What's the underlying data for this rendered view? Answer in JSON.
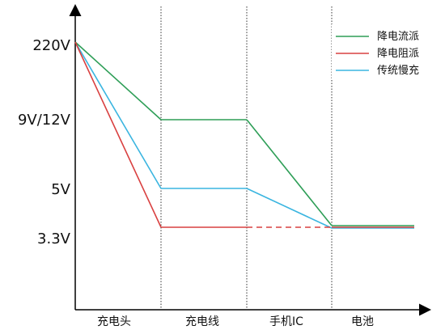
{
  "chart_data": {
    "type": "line",
    "categories_boundaries": [
      0,
      1,
      2,
      3,
      4
    ],
    "x_category_labels": [
      "充电头",
      "充电线",
      "手机IC",
      "电池"
    ],
    "y_tick_labels": [
      "220V",
      "9V/12V",
      "5V",
      "3.3V"
    ],
    "y_tick_values": [
      220,
      9,
      5,
      3.3
    ],
    "series": [
      {
        "name": "降电流派",
        "color": "#2e9e57",
        "dashed_after_x": null,
        "points": [
          [
            0,
            220
          ],
          [
            1,
            9
          ],
          [
            2,
            9
          ],
          [
            3,
            3.3
          ],
          [
            4,
            3.3
          ]
        ]
      },
      {
        "name": "降电阻派",
        "color": "#d94040",
        "dashed_after_x": 2,
        "points": [
          [
            0,
            220
          ],
          [
            1,
            3.3
          ],
          [
            2,
            3.3
          ],
          [
            3,
            3.3
          ],
          [
            4,
            3.3
          ]
        ]
      },
      {
        "name": "传统慢充",
        "color": "#3ab5e0",
        "dashed_after_x": null,
        "points": [
          [
            0,
            220
          ],
          [
            1,
            5
          ],
          [
            2,
            5
          ],
          [
            3,
            3.3
          ],
          [
            4,
            3.3
          ]
        ]
      }
    ],
    "legend_position": "top-right",
    "grid": "vertical dotted lines at category boundaries"
  }
}
